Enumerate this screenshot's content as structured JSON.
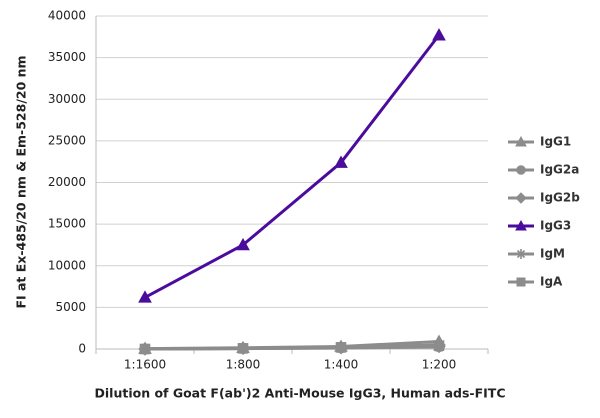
{
  "chart_data": {
    "type": "line",
    "x_label": "Dilution of Goat F(ab')2 Anti-Mouse IgG3, Human ads-FITC",
    "y_label": "FI at Ex-485/20 nm & Em-528/20 nm",
    "categories": [
      "1:1600",
      "1:800",
      "1:400",
      "1:200"
    ],
    "series": [
      {
        "name": "IgG1",
        "color": "#8c8c8c",
        "marker": "triangle",
        "values": [
          50,
          150,
          300,
          900
        ]
      },
      {
        "name": "IgG2a",
        "color": "#8c8c8c",
        "marker": "circle",
        "values": [
          0,
          50,
          150,
          300
        ]
      },
      {
        "name": "IgG2b",
        "color": "#8c8c8c",
        "marker": "diamond",
        "values": [
          0,
          100,
          200,
          500
        ]
      },
      {
        "name": "IgG3",
        "color": "#4b0c9e",
        "marker": "triangle",
        "values": [
          6200,
          12500,
          22400,
          37700
        ]
      },
      {
        "name": "IgM",
        "color": "#8c8c8c",
        "marker": "star",
        "values": [
          0,
          50,
          100,
          250
        ]
      },
      {
        "name": "IgA",
        "color": "#8c8c8c",
        "marker": "square",
        "values": [
          0,
          80,
          200,
          400
        ]
      }
    ],
    "ylim": [
      0,
      40000
    ],
    "yticks": [
      0,
      5000,
      10000,
      15000,
      20000,
      25000,
      30000,
      35000,
      40000
    ],
    "grid": true,
    "legend": "right"
  }
}
